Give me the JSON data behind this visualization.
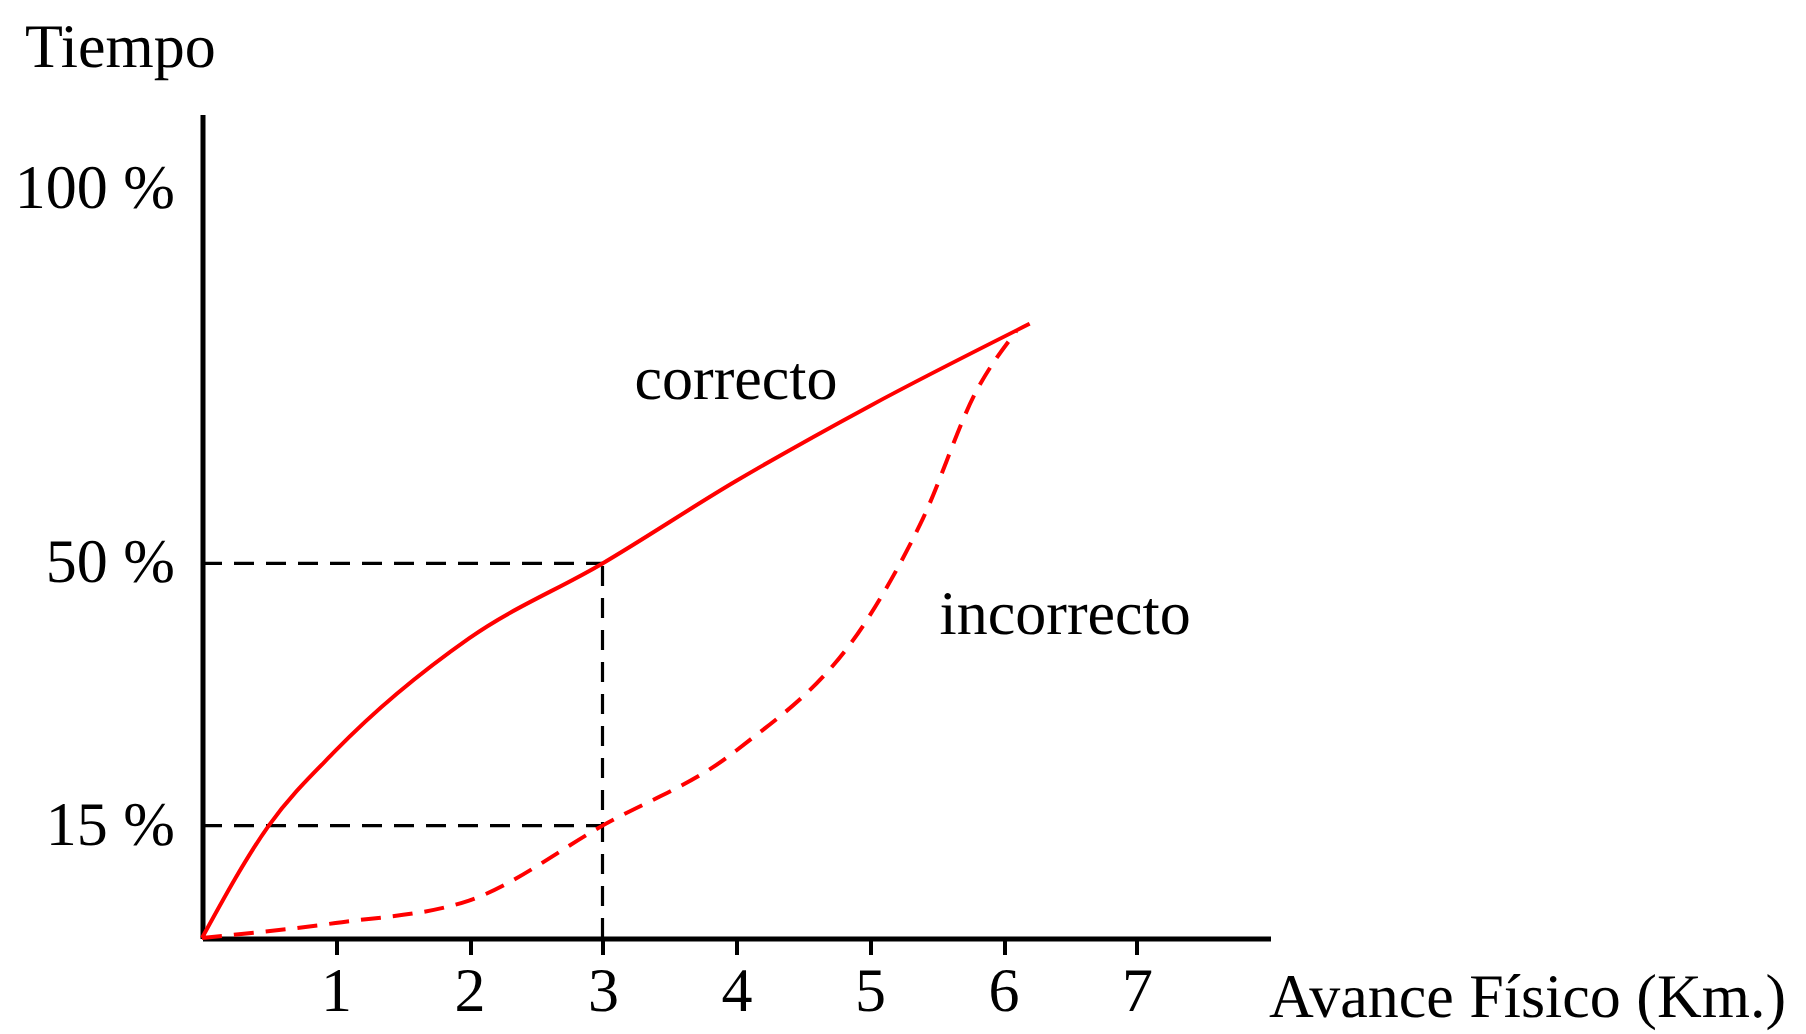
{
  "chart_data": {
    "type": "line",
    "xlabel": "Avance Físico (Km.)",
    "ylabel": "Tiempo",
    "xlim": [
      0,
      8
    ],
    "ylim": [
      0,
      110
    ],
    "xticks": [
      1,
      2,
      3,
      4,
      5,
      6,
      7
    ],
    "yticks": [
      {
        "value": 15,
        "label": "15 %"
      },
      {
        "value": 50,
        "label": "50 %"
      },
      {
        "value": 100,
        "label": "100 %"
      }
    ],
    "series": [
      {
        "name": "correcto",
        "color": "#ff0000",
        "line_style": "solid",
        "x": [
          0,
          0.5,
          1,
          2,
          3,
          4,
          5,
          6.2
        ],
        "values": [
          0,
          15,
          25,
          40,
          50,
          61,
          71,
          82
        ]
      },
      {
        "name": "incorrecto",
        "color": "#ff0000",
        "line_style": "dashed",
        "x": [
          0,
          1,
          2,
          3,
          4,
          5,
          5.4,
          5.8,
          6.1
        ],
        "values": [
          0,
          2,
          5,
          15,
          25,
          43,
          56,
          73,
          81
        ]
      }
    ],
    "ref_lines": [
      {
        "axis": "y",
        "value": 50,
        "color": "#000000",
        "line_style": "dashed"
      },
      {
        "axis": "y",
        "value": 15,
        "color": "#000000",
        "line_style": "dashed"
      },
      {
        "axis": "x",
        "value": 3,
        "color": "#000000",
        "line_style": "dashed"
      }
    ]
  }
}
